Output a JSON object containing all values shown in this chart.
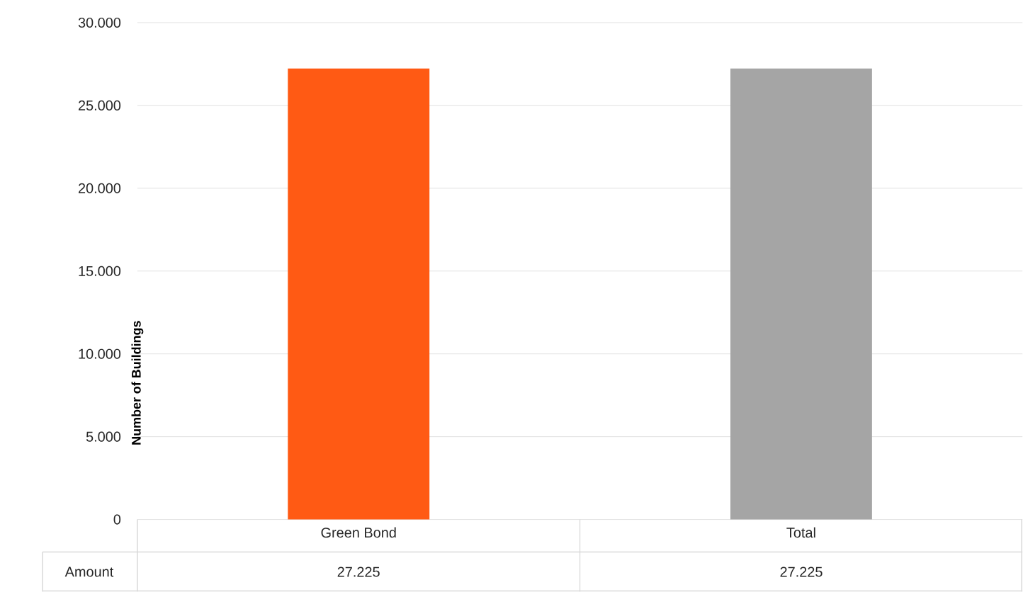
{
  "chart_data": {
    "type": "bar",
    "ylabel": "Number of Buildings",
    "categories": [
      "Green Bond",
      "Total"
    ],
    "series": [
      {
        "name": "Amount",
        "colors": [
          "#ff5a14",
          "#a5a5a5"
        ],
        "values": [
          27225,
          27225
        ],
        "value_labels": [
          "27.225",
          "27.225"
        ]
      }
    ],
    "ylim": [
      0,
      30000
    ],
    "yticks": [
      0,
      {
        "value": 5000,
        "label": "5.000"
      },
      {
        "value": 10000,
        "label": "10.000"
      },
      {
        "value": 15000,
        "label": "15.000"
      },
      {
        "value": 20000,
        "label": "20.000"
      },
      {
        "value": 25000,
        "label": "25.000"
      },
      {
        "value": 30000,
        "label": "30.000"
      }
    ],
    "grid": true
  }
}
